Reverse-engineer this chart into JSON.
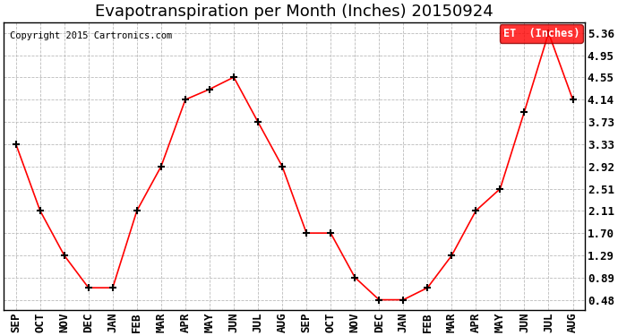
{
  "title": "Evapotranspiration per Month (Inches) 20150924",
  "copyright": "Copyright 2015 Cartronics.com",
  "legend_label": "ET  (Inches)",
  "categories": [
    "SEP",
    "OCT",
    "NOV",
    "DEC",
    "JAN",
    "FEB",
    "MAR",
    "APR",
    "MAY",
    "JUN",
    "JUL",
    "AUG",
    "SEP",
    "OCT",
    "NOV",
    "DEC",
    "JAN",
    "FEB",
    "MAR",
    "APR",
    "MAY",
    "JUN",
    "JUL",
    "AUG"
  ],
  "values": [
    3.33,
    2.11,
    1.29,
    0.7,
    0.7,
    2.11,
    2.92,
    4.14,
    4.33,
    4.55,
    3.73,
    2.92,
    1.7,
    1.7,
    0.89,
    0.48,
    0.48,
    0.7,
    1.29,
    2.11,
    2.51,
    3.92,
    5.36,
    4.14
  ],
  "yticks": [
    0.48,
    0.89,
    1.29,
    1.7,
    2.11,
    2.51,
    2.92,
    3.33,
    3.73,
    4.14,
    4.55,
    4.95,
    5.36
  ],
  "line_color": "red",
  "marker_color": "black",
  "bg_color": "#ffffff",
  "grid_color": "#bbbbbb",
  "title_fontsize": 13,
  "tick_fontsize": 9,
  "legend_bg": "red",
  "legend_text_color": "white",
  "ylim_min": 0.3,
  "ylim_max": 5.55
}
